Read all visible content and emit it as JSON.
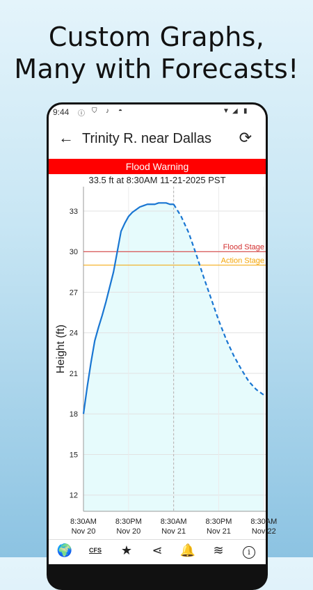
{
  "promo": {
    "line1": "Custom Graphs,",
    "line2": "Many with Forecasts!"
  },
  "status_bar": {
    "time": "9:44",
    "icons": [
      "info-icon",
      "shield-icon",
      "mic-icon",
      "android-icon",
      "wifi-icon",
      "signal-icon",
      "battery-icon"
    ]
  },
  "app_bar": {
    "back_icon": "arrow-back-icon",
    "title": "Trinity R. near Dallas",
    "refresh_icon": "refresh-icon"
  },
  "banner": {
    "text": "Flood Warning",
    "color": "#ff0000"
  },
  "readout": "33.5 ft at 8:30AM 11-21-2025 PST",
  "chart_data": {
    "type": "line",
    "ylabel": "Height (ft)",
    "xlabel": "",
    "ylim": [
      10.8,
      34.8
    ],
    "yticks": [
      12,
      15,
      18,
      21,
      24,
      27,
      30,
      33
    ],
    "grid": true,
    "x_ticks": [
      {
        "time": "8:30AM",
        "day": "Nov 20"
      },
      {
        "time": "8:30PM",
        "day": "Nov 20"
      },
      {
        "time": "8:30AM",
        "day": "Nov 21"
      },
      {
        "time": "8:30PM",
        "day": "Nov 21"
      },
      {
        "time": "8:30AM",
        "day": "Nov 22"
      }
    ],
    "x_tick_hours": [
      0,
      12,
      24,
      36,
      48
    ],
    "xlim_hours": [
      0,
      48.5
    ],
    "now_hour": 24,
    "thresholds": [
      {
        "label": "Flood Stage",
        "value": 30,
        "color": "#d32f2f"
      },
      {
        "label": "Action Stage",
        "value": 29,
        "color": "#f4a300"
      }
    ],
    "series": [
      {
        "name": "",
        "style": "solid",
        "color": "#1976d2",
        "x_hours": [
          0,
          1,
          2,
          3,
          4,
          5,
          6,
          7,
          8,
          9,
          10,
          11,
          12,
          13,
          14,
          15,
          16,
          17,
          18,
          19,
          20,
          21,
          22,
          23,
          24
        ],
        "values": [
          18.0,
          20.0,
          21.8,
          23.4,
          24.4,
          25.3,
          26.3,
          27.4,
          28.5,
          30.0,
          31.5,
          32.1,
          32.6,
          32.9,
          33.1,
          33.3,
          33.4,
          33.5,
          33.5,
          33.5,
          33.6,
          33.6,
          33.6,
          33.5,
          33.5
        ]
      },
      {
        "name": "",
        "style": "dashed",
        "color": "#1976d2",
        "x_hours": [
          24,
          26,
          28,
          30,
          32,
          34,
          36,
          38,
          40,
          42,
          44,
          46,
          48
        ],
        "values": [
          33.5,
          32.6,
          31.4,
          29.8,
          28.1,
          26.5,
          24.9,
          23.5,
          22.3,
          21.3,
          20.4,
          19.8,
          19.4
        ]
      }
    ],
    "fill_color": "#e6fbfc"
  },
  "bottom_nav": {
    "items": [
      {
        "icon": "globe-pin-icon",
        "label": "🌍"
      },
      {
        "icon": "cfs-icon",
        "label": "CFS"
      },
      {
        "icon": "star-icon",
        "label": "★"
      },
      {
        "icon": "share-icon",
        "label": "⋖"
      },
      {
        "icon": "bell-icon",
        "label": "🔔"
      },
      {
        "icon": "water-icon",
        "label": "≋"
      },
      {
        "icon": "info-icon",
        "label": "i"
      }
    ]
  }
}
